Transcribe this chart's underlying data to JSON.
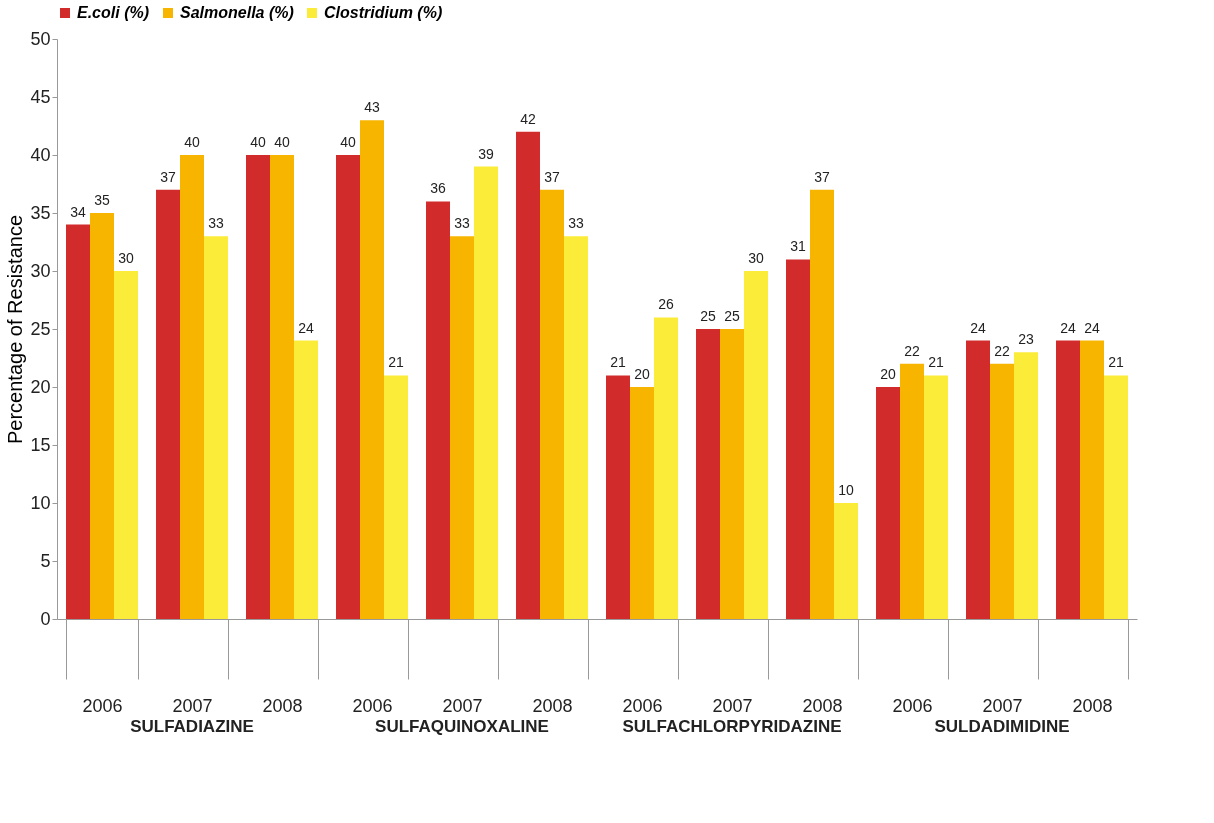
{
  "chart_data": {
    "type": "bar",
    "ylabel": "Percentage of Resistance",
    "categories": [
      "2006",
      "2007",
      "2008",
      "2006",
      "2007",
      "2008",
      "2006",
      "2007",
      "2008",
      "2006",
      "2007",
      "2008"
    ],
    "series": [
      {
        "name": "E.coli (%)",
        "color": "#d22b2b",
        "values": [
          34,
          37,
          40,
          40,
          36,
          42,
          21,
          25,
          31,
          20,
          24,
          24
        ]
      },
      {
        "name": "Salmonella (%)",
        "color": "#f7b500",
        "values": [
          35,
          40,
          40,
          43,
          33,
          37,
          20,
          25,
          37,
          22,
          22,
          24
        ]
      },
      {
        "name": "Clostridium (%)",
        "color": "#fcec3a",
        "values": [
          30,
          33,
          24,
          21,
          39,
          33,
          26,
          30,
          10,
          21,
          23,
          21
        ]
      }
    ],
    "annotations": [
      "SULFADIAZINE",
      "SULFAQUINOXALINE",
      "SULFACHLORPYRIDAZINE",
      "SULDADIMIDINE"
    ],
    "ylim": [
      0,
      50
    ],
    "yticks": [
      0,
      5,
      10,
      15,
      20,
      25,
      30,
      35,
      40,
      45,
      50
    ],
    "grid": false,
    "legend": "top",
    "data_labels": true
  }
}
